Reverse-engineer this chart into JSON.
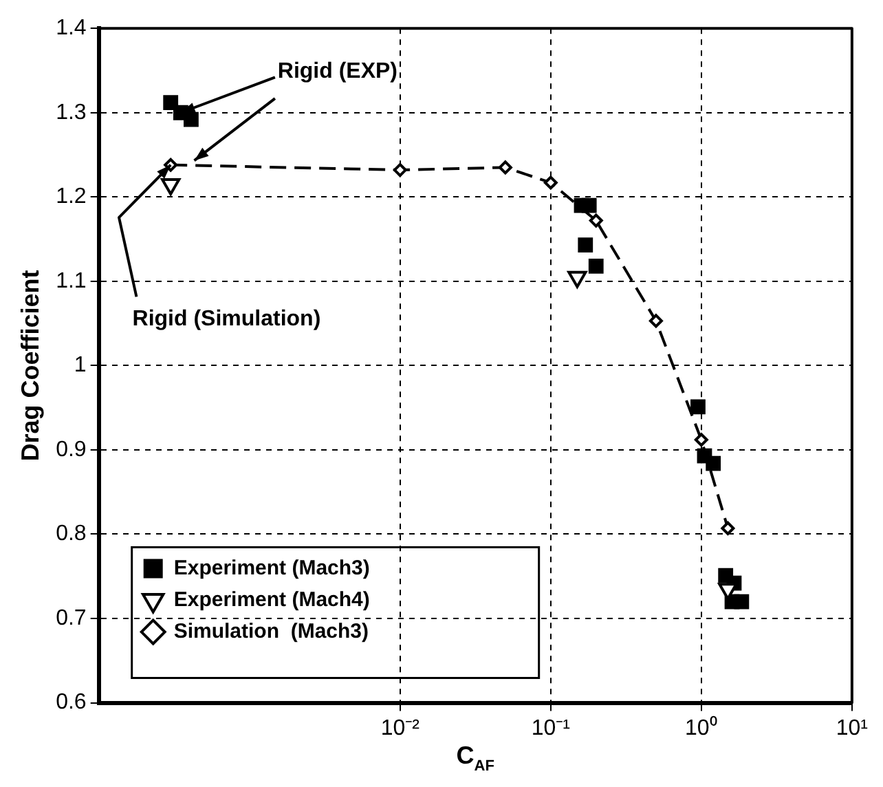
{
  "chart_data": {
    "type": "scatter",
    "xlabel": "C$_{AF}$",
    "ylabel": "Drag Coefficient",
    "log": "x",
    "xlim": [
      0.0001,
      10
    ],
    "ylim": [
      0.6,
      1.4
    ],
    "xticks": [
      {
        "value": 0.01,
        "label": "10⁻²"
      },
      {
        "value": 0.1,
        "label": "10⁻¹"
      },
      {
        "value": 1,
        "label": "10⁰"
      },
      {
        "value": 10,
        "label": "10¹"
      }
    ],
    "yticks": [
      0.6,
      0.7,
      0.8,
      0.9,
      1,
      1.1,
      1.2,
      1.3,
      1.4
    ],
    "grid": true,
    "legend": "bottom left",
    "series": [
      {
        "name": "Experiment (Mach3)",
        "type": "scatter",
        "marker": "square",
        "color": "#000000",
        "x": [
          0.0003,
          0.00035,
          0.00041,
          0.16,
          0.18,
          0.17,
          0.2,
          0.95,
          1.05,
          1.2,
          1.45,
          1.65,
          1.6,
          1.85
        ],
        "values": [
          1.312,
          1.3,
          1.292,
          1.19,
          1.19,
          1.143,
          1.118,
          0.951,
          0.893,
          0.884,
          0.751,
          0.742,
          0.72,
          0.72
        ]
      },
      {
        "name": "Experiment (Mach4)",
        "type": "scatter",
        "marker": "triangle",
        "color": "#000000",
        "x": [
          0.0003,
          0.15,
          1.5
        ],
        "values": [
          1.215,
          1.105,
          0.735
        ]
      },
      {
        "name": "Simulation  (Mach3)",
        "type": "line",
        "marker": "diamond",
        "line_style": "dashed",
        "color": "#000000",
        "x": [
          0.0003,
          0.01,
          0.05,
          0.1,
          0.2,
          0.5,
          1,
          1.5
        ],
        "values": [
          1.238,
          1.232,
          1.235,
          1.217,
          1.172,
          1.053,
          0.912,
          0.807
        ]
      }
    ],
    "annotations": [
      {
        "text": "Rigid (EXP)",
        "x": 0.00035,
        "y": 1.3
      },
      {
        "text": "Rigid (Simulation)",
        "x": 0.0003,
        "y": 1.238
      }
    ]
  }
}
